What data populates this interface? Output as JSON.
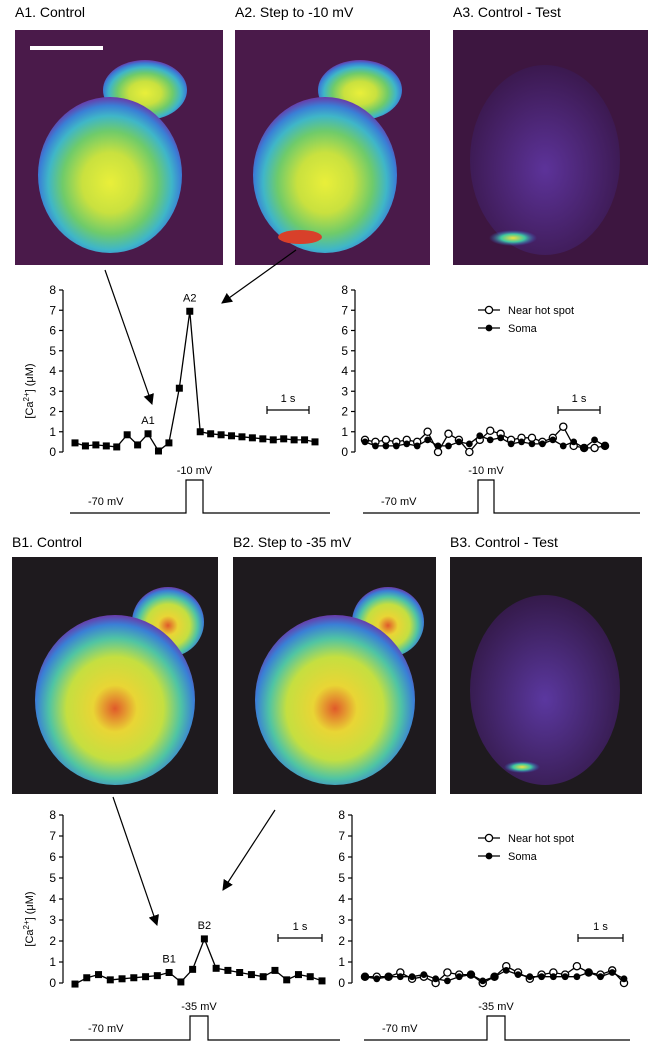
{
  "panel_titles": [
    "A1. Control",
    "A2. Step to -10 mV",
    "A3. Control - Test",
    "B1. Control",
    "B2. Step to -35 mV",
    "B3. Control - Test"
  ],
  "protocols": [
    {
      "holding": "-70 mV",
      "step": "-10 mV"
    },
    {
      "holding": "-70 mV",
      "step": "-10 mV"
    },
    {
      "holding": "-70 mV",
      "step": "-35 mV"
    },
    {
      "holding": "-70 mV",
      "step": "-35 mV"
    }
  ],
  "chart_data": [
    {
      "type": "line",
      "y_label": [
        "[Ca",
        "2+",
        "] (μM)"
      ],
      "ylim": [
        0,
        8
      ],
      "yticks": [
        0,
        1,
        2,
        3,
        4,
        5,
        6,
        7,
        8
      ],
      "scale_bar_label": "1 s",
      "annotations": [
        "A1",
        "A2"
      ],
      "series": [
        {
          "color": "#000000",
          "marker": "square",
          "values": [
            0.45,
            0.3,
            0.35,
            0.3,
            0.25,
            0.85,
            0.35,
            0.9,
            0.05,
            0.45,
            3.15,
            6.95,
            1.0,
            0.9,
            0.85,
            0.8,
            0.75,
            0.7,
            0.65,
            0.6,
            0.65,
            0.6,
            0.6,
            0.5
          ]
        }
      ]
    },
    {
      "type": "line",
      "ylim": [
        0,
        8
      ],
      "yticks": [
        0,
        1,
        2,
        3,
        4,
        5,
        6,
        7,
        8
      ],
      "legend": "upper right",
      "scale_bar_label": "1 s",
      "series": [
        {
          "name": "Near hot spot",
          "color": "#000000",
          "marker": "circle-open",
          "values": [
            0.6,
            0.5,
            0.6,
            0.5,
            0.6,
            0.5,
            1.0,
            0.0,
            0.9,
            0.6,
            0.0,
            0.6,
            1.05,
            0.9,
            0.6,
            0.7,
            0.7,
            0.5,
            0.7,
            1.25,
            0.3,
            0.2,
            0.2,
            0.3
          ]
        },
        {
          "name": "Soma",
          "color": "#000000",
          "marker": "circle",
          "values": [
            0.5,
            0.3,
            0.3,
            0.3,
            0.4,
            0.3,
            0.6,
            0.3,
            0.3,
            0.5,
            0.4,
            0.8,
            0.6,
            0.7,
            0.4,
            0.5,
            0.4,
            0.4,
            0.6,
            0.3,
            0.5,
            0.2,
            0.6,
            0.3
          ]
        }
      ]
    },
    {
      "type": "line",
      "y_label": [
        "[Ca",
        "2+",
        "] (μM)"
      ],
      "ylim": [
        0,
        8
      ],
      "yticks": [
        0,
        1,
        2,
        3,
        4,
        5,
        6,
        7,
        8
      ],
      "scale_bar_label": "1 s",
      "annotations": [
        "B1",
        "B2"
      ],
      "series": [
        {
          "color": "#000000",
          "marker": "square",
          "values": [
            -0.05,
            0.25,
            0.4,
            0.15,
            0.2,
            0.25,
            0.3,
            0.35,
            0.5,
            0.05,
            0.65,
            2.1,
            0.7,
            0.6,
            0.5,
            0.4,
            0.3,
            0.6,
            0.15,
            0.4,
            0.3,
            0.1
          ]
        }
      ]
    },
    {
      "type": "line",
      "ylim": [
        0,
        8
      ],
      "yticks": [
        0,
        1,
        2,
        3,
        4,
        5,
        6,
        7,
        8
      ],
      "legend": "upper right",
      "scale_bar_label": "1 s",
      "series": [
        {
          "name": "Near hot spot",
          "color": "#000000",
          "marker": "circle-open",
          "values": [
            0.3,
            0.3,
            0.3,
            0.5,
            0.2,
            0.3,
            0.0,
            0.5,
            0.4,
            0.4,
            0.0,
            0.3,
            0.8,
            0.5,
            0.2,
            0.4,
            0.5,
            0.4,
            0.8,
            0.5,
            0.4,
            0.6,
            0.0
          ]
        },
        {
          "name": "Soma",
          "color": "#000000",
          "marker": "circle",
          "values": [
            0.3,
            0.2,
            0.3,
            0.3,
            0.3,
            0.4,
            0.2,
            0.1,
            0.3,
            0.4,
            0.1,
            0.3,
            0.6,
            0.4,
            0.3,
            0.3,
            0.3,
            0.3,
            0.3,
            0.5,
            0.3,
            0.5,
            0.2
          ]
        }
      ]
    }
  ]
}
